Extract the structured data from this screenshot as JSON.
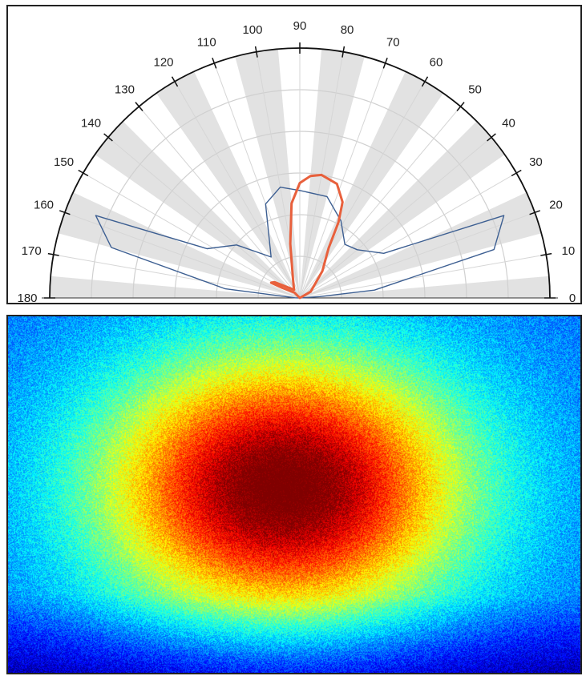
{
  "chart_data": [
    {
      "type": "polar",
      "angle_unit": "degrees",
      "angle_range": [
        0,
        180
      ],
      "angle_ticks": [
        0,
        10,
        20,
        30,
        40,
        50,
        60,
        70,
        80,
        90,
        100,
        110,
        120,
        130,
        140,
        150,
        160,
        170,
        180
      ],
      "angle_tick_labels": [
        "0",
        "10",
        "20",
        "30",
        "40",
        "50",
        "60",
        "70",
        "80",
        "90",
        "100",
        "110",
        "120",
        "130",
        "140",
        "150",
        "160",
        "170",
        "180"
      ],
      "r_range": [
        0,
        1
      ],
      "grid": true,
      "shaded_sectors": [
        [
          0,
          5
        ],
        [
          15,
          25
        ],
        [
          35,
          45
        ],
        [
          55,
          65
        ],
        [
          75,
          85
        ],
        [
          95,
          105
        ],
        [
          115,
          125
        ],
        [
          135,
          145
        ],
        [
          155,
          165
        ],
        [
          175,
          180
        ]
      ],
      "series": [
        {
          "color": "#3d5f92",
          "points": [
            {
              "theta": 0,
              "r": 0.0
            },
            {
              "theta": 4,
              "r": 0.08
            },
            {
              "theta": 6,
              "r": 0.3
            },
            {
              "theta": 14,
              "r": 0.8
            },
            {
              "theta": 22,
              "r": 0.88
            },
            {
              "theta": 28,
              "r": 0.38
            },
            {
              "theta": 40,
              "r": 0.3
            },
            {
              "theta": 50,
              "r": 0.28
            },
            {
              "theta": 62,
              "r": 0.35
            },
            {
              "theta": 75,
              "r": 0.42
            },
            {
              "theta": 90,
              "r": 0.43
            },
            {
              "theta": 100,
              "r": 0.45
            },
            {
              "theta": 110,
              "r": 0.4
            },
            {
              "theta": 125,
              "r": 0.2
            },
            {
              "theta": 140,
              "r": 0.33
            },
            {
              "theta": 152,
              "r": 0.42
            },
            {
              "theta": 158,
              "r": 0.88
            },
            {
              "theta": 165,
              "r": 0.78
            },
            {
              "theta": 173,
              "r": 0.3
            },
            {
              "theta": 178,
              "r": 0.02
            }
          ]
        },
        {
          "color": "#e8603c",
          "points": [
            {
              "theta": 0,
              "r": 0.0
            },
            {
              "theta": 30,
              "r": 0.05
            },
            {
              "theta": 50,
              "r": 0.14
            },
            {
              "theta": 60,
              "r": 0.23
            },
            {
              "theta": 63,
              "r": 0.34
            },
            {
              "theta": 66,
              "r": 0.42
            },
            {
              "theta": 72,
              "r": 0.48
            },
            {
              "theta": 80,
              "r": 0.5
            },
            {
              "theta": 85,
              "r": 0.49
            },
            {
              "theta": 90,
              "r": 0.46
            },
            {
              "theta": 95,
              "r": 0.38
            },
            {
              "theta": 100,
              "r": 0.22
            },
            {
              "theta": 110,
              "r": 0.08
            },
            {
              "theta": 125,
              "r": 0.04
            },
            {
              "theta": 148,
              "r": 0.12
            },
            {
              "theta": 152,
              "r": 0.13
            },
            {
              "theta": 150,
              "r": 0.08
            },
            {
              "theta": 135,
              "r": 0.03
            },
            {
              "theta": 180,
              "r": 0.0
            }
          ]
        }
      ]
    },
    {
      "type": "heatmap",
      "colormap": "jet",
      "peak_center": [
        0.48,
        0.48
      ],
      "spread": [
        0.22,
        0.26
      ]
    }
  ]
}
